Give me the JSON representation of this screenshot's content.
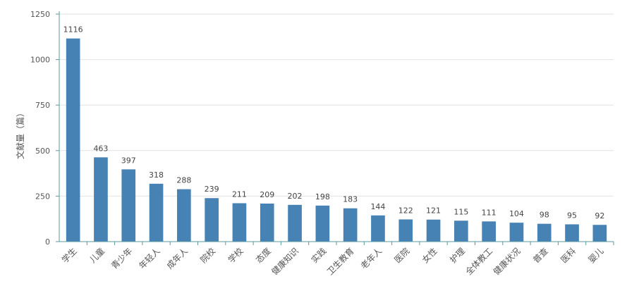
{
  "chart_data": {
    "type": "bar",
    "ylabel": "文献量（篇）",
    "ylim": [
      0,
      1250
    ],
    "yticks": [
      0,
      250,
      500,
      750,
      1000,
      1250
    ],
    "grid": true,
    "categories": [
      "学生",
      "儿童",
      "青少年",
      "年轻人",
      "成年人",
      "院校",
      "学校",
      "态度",
      "健康知识",
      "实践",
      "卫生教育",
      "老年人",
      "医院",
      "女性",
      "护理",
      "全体教工",
      "健康状况",
      "普查",
      "医科",
      "婴儿"
    ],
    "values": [
      1116,
      463,
      397,
      318,
      288,
      239,
      211,
      209,
      202,
      198,
      183,
      144,
      122,
      121,
      115,
      111,
      104,
      98,
      95,
      92
    ],
    "colors": {
      "bar": "#4682b4",
      "axis": "#5a9aa0",
      "grid": "#e2e2e2"
    }
  }
}
